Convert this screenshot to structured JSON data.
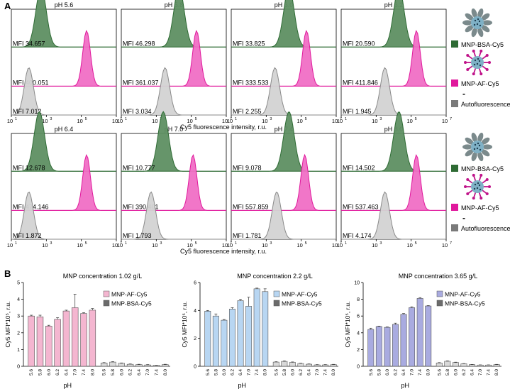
{
  "panel_a_label": "A",
  "panel_b_label": "B",
  "histogram_xlabel": "Cy5 fluorescence intensity, r.u.",
  "bar_xlabel": "pH",
  "x_tick_labels": [
    "10",
    "10",
    "10",
    "10"
  ],
  "x_tick_exponents": [
    "1",
    "3",
    "5",
    "7"
  ],
  "legend_a": [
    "MNP-BSA-Cy5",
    "MNP-AF-Cy5",
    "Autofluorescence"
  ],
  "legend_dash": "-",
  "colors": {
    "bsa": "#2e6b34",
    "bsa_fill": "#5e8f62",
    "af": "#e0189c",
    "af_fill": "#f06fc5",
    "auto": "#8a8a8a",
    "auto_fill": "#d3d3d3",
    "bar1_af": "#f4b6d0",
    "bar2_af": "#b8d6f2",
    "bar3_af": "#a9abe0",
    "bsa_bar": "#d9d9d9"
  },
  "chart_data": [
    {
      "type": "histogram",
      "title": "Flow cytometry histograms, row 1",
      "xlabel": "Cy5 fluorescence intensity, r.u.",
      "xscale": "log",
      "xlim": [
        10,
        10000000
      ],
      "panels": [
        {
          "title": "pH 5.6",
          "mfi_bsa": "MFI 34.657",
          "mfi_af": "MFI 400.051",
          "mfi_auto": "MFI 7.012",
          "peak_bsa": 2.7,
          "peak_af": 5.3,
          "peak_auto": 2.0
        },
        {
          "title": "pH 5.8",
          "mfi_bsa": "MFI 46.298",
          "mfi_af": "MFI 361.037",
          "mfi_auto": "MFI 3.034",
          "peak_bsa": 4.3,
          "peak_af": 5.3,
          "peak_auto": 3.5
        },
        {
          "title": "pH 6.0",
          "mfi_bsa": "MFI 33.825",
          "mfi_af": "MFI 333.533",
          "mfi_auto": "MFI 2.255",
          "peak_bsa": 4.3,
          "peak_af": 5.3,
          "peak_auto": 3.5
        },
        {
          "title": "pH 6.2",
          "mfi_bsa": "MFI 20.590",
          "mfi_af": "MFI 411.846",
          "mfi_auto": "MFI 1.945",
          "peak_bsa": 4.3,
          "peak_af": 5.3,
          "peak_auto": 3.5
        }
      ]
    },
    {
      "type": "histogram",
      "title": "Flow cytometry histograms, row 2",
      "xlabel": "Cy5 fluorescence intensity, r.u.",
      "xscale": "log",
      "xlim": [
        10,
        10000000
      ],
      "panels": [
        {
          "title": "pH 6.4",
          "mfi_bsa": "MFI 12.678",
          "mfi_af": "MFI 474.146",
          "mfi_auto": "MFI 1.872",
          "peak_bsa": 2.6,
          "peak_af": 5.3,
          "peak_auto": 2.0
        },
        {
          "title": "pH 7.0",
          "mfi_bsa": "MFI 10.777",
          "mfi_af": "MFI 390.401",
          "mfi_auto": "MFI 1.793",
          "peak_bsa": 3.4,
          "peak_af": 5.1,
          "peak_auto": 2.7
        },
        {
          "title": "pH 7.4",
          "mfi_bsa": "MFI 9.078",
          "mfi_af": "MFI 557.859",
          "mfi_auto": "MFI 1.781",
          "peak_bsa": 4.3,
          "peak_af": 5.2,
          "peak_auto": 3.6
        },
        {
          "title": "pH 8.0",
          "mfi_bsa": "MFI 14.502",
          "mfi_af": "MFI 537.463",
          "mfi_auto": "MFI 4.174",
          "peak_bsa": 4.3,
          "peak_af": 5.3,
          "peak_auto": 3.5
        }
      ]
    },
    {
      "type": "bar",
      "title": "MNP concentration 1.02 g/L",
      "ylabel": "Cy5 MFI*10⁵, r.u.",
      "xlabel": "pH",
      "ylim": [
        0,
        5
      ],
      "yticks": [
        "0",
        "1",
        "2",
        "3",
        "4",
        "5"
      ],
      "categories": [
        "5.6",
        "5.8",
        "6.0",
        "6.2",
        "6.4",
        "7.0",
        "7.4",
        "8.0"
      ],
      "series": [
        {
          "name": "MNP-AF-Cy5",
          "values": [
            3.0,
            2.95,
            2.4,
            2.8,
            3.3,
            3.5,
            3.15,
            3.35
          ],
          "errors": [
            0.05,
            0.1,
            0.05,
            0.1,
            0.05,
            0.8,
            0.05,
            0.1
          ]
        },
        {
          "name": "MNP-BSA-Cy5",
          "values": [
            0.2,
            0.25,
            0.18,
            0.12,
            0.1,
            0.08,
            0.06,
            0.1
          ],
          "errors": [
            0.02,
            0.03,
            0.02,
            0.02,
            0.02,
            0.02,
            0.01,
            0.02
          ]
        }
      ]
    },
    {
      "type": "bar",
      "title": "MNP concentration 2.2 g/L",
      "ylabel": "Cy5 MFI*10⁵, r.u.",
      "xlabel": "pH",
      "ylim": [
        0,
        6
      ],
      "yticks": [
        "0",
        "2",
        "4",
        "6"
      ],
      "categories": [
        "5.6",
        "5.8",
        "6.0",
        "6.2",
        "6.4",
        "7.0",
        "7.4",
        "8.0"
      ],
      "series": [
        {
          "name": "MNP-AF-Cy5",
          "values": [
            3.95,
            3.6,
            3.3,
            4.1,
            4.7,
            4.3,
            5.55,
            5.35
          ],
          "errors": [
            0.05,
            0.15,
            0.05,
            0.1,
            0.1,
            0.65,
            0.05,
            0.2
          ]
        },
        {
          "name": "MNP-BSA-Cy5",
          "values": [
            0.3,
            0.35,
            0.28,
            0.2,
            0.15,
            0.1,
            0.1,
            0.12
          ],
          "errors": [
            0.03,
            0.04,
            0.03,
            0.02,
            0.02,
            0.02,
            0.02,
            0.02
          ]
        }
      ]
    },
    {
      "type": "bar",
      "title": "MNP concentration 3.65 g/L",
      "ylabel": "Cy5 MFI*10⁵, r.u.",
      "xlabel": "pH",
      "ylim": [
        0,
        10
      ],
      "yticks": [
        "0",
        "2",
        "4",
        "6",
        "8",
        "10"
      ],
      "categories": [
        "5.6",
        "5.8",
        "6.0",
        "6.2",
        "6.4",
        "7.0",
        "7.4",
        "8.0"
      ],
      "series": [
        {
          "name": "MNP-AF-Cy5",
          "values": [
            4.4,
            4.75,
            4.65,
            5.0,
            6.2,
            7.0,
            8.1,
            7.2
          ],
          "errors": [
            0.15,
            0.05,
            0.05,
            0.15,
            0.1,
            0.1,
            0.1,
            0.05
          ]
        },
        {
          "name": "MNP-BSA-Cy5",
          "values": [
            0.4,
            0.6,
            0.45,
            0.3,
            0.2,
            0.15,
            0.15,
            0.2
          ],
          "errors": [
            0.04,
            0.05,
            0.04,
            0.03,
            0.02,
            0.02,
            0.02,
            0.03
          ]
        }
      ]
    }
  ]
}
